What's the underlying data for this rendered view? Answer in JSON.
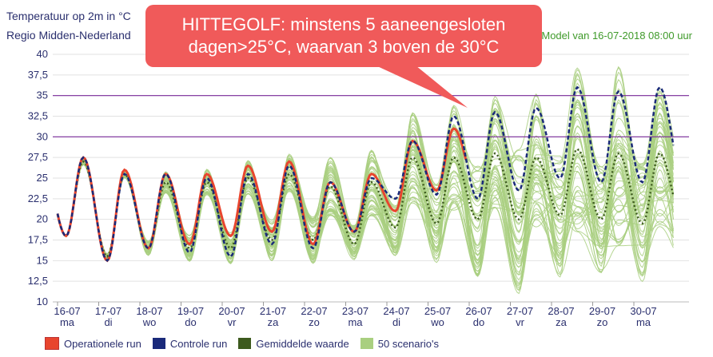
{
  "header": {
    "title": "Temperatuur op 2m in °C",
    "region": "Regio Midden-Nederland",
    "model": "Model van 16-07-2018 08:00 uur"
  },
  "callout": {
    "line1": "HITTEGOLF: minstens 5 aaneengesloten",
    "line2": "dagen>25°C, waarvan 3 boven de 30°C"
  },
  "legend": [
    {
      "label": "Operationele run",
      "color": "#e8452e"
    },
    {
      "label": "Controle run",
      "color": "#1a2a7a"
    },
    {
      "label": "Gemiddelde waarde",
      "color": "#3d5a1e"
    },
    {
      "label": "50 scenario's",
      "color": "#a9cf80"
    }
  ],
  "chart_data": {
    "type": "line",
    "title": "Temperatuur op 2m in °C",
    "ylim": [
      10,
      40
    ],
    "yticks": [
      "10",
      "12,5",
      "15",
      "17,5",
      "20",
      "22,5",
      "25",
      "27,5",
      "30",
      "32,5",
      "35",
      "37,5",
      "40"
    ],
    "xticks": [
      {
        "date": "16-07",
        "day": "ma"
      },
      {
        "date": "17-07",
        "day": "di"
      },
      {
        "date": "18-07",
        "day": "wo"
      },
      {
        "date": "19-07",
        "day": "do"
      },
      {
        "date": "20-07",
        "day": "vr"
      },
      {
        "date": "21-07",
        "day": "za"
      },
      {
        "date": "22-07",
        "day": "zo"
      },
      {
        "date": "23-07",
        "day": "ma"
      },
      {
        "date": "24-07",
        "day": "di"
      },
      {
        "date": "25-07",
        "day": "wo"
      },
      {
        "date": "26-07",
        "day": "do"
      },
      {
        "date": "27-07",
        "day": "vr"
      },
      {
        "date": "28-07",
        "day": "za"
      },
      {
        "date": "29-07",
        "day": "zo"
      },
      {
        "date": "30-07",
        "day": "ma"
      }
    ],
    "thresholds": [
      30,
      35
    ],
    "threshold_color": "#7a2a9a",
    "daily_extremes": {
      "dates": [
        "16-07",
        "17-07",
        "18-07",
        "19-07",
        "20-07",
        "21-07",
        "22-07",
        "23-07",
        "24-07",
        "25-07",
        "26-07",
        "27-07",
        "28-07",
        "29-07",
        "30-07"
      ],
      "operationele_run_max": [
        27.5,
        26,
        25.5,
        25.5,
        26.5,
        27,
        24.5,
        25.5,
        29.5,
        31,
        null,
        null,
        null,
        null,
        null
      ],
      "operationele_run_min": [
        18,
        15,
        16.5,
        17,
        18,
        18.5,
        17,
        18.5,
        21,
        23.5,
        null,
        null,
        null,
        null,
        null
      ],
      "controle_run_max": [
        27.5,
        25.5,
        25.5,
        25,
        25.5,
        26.5,
        24.5,
        25,
        29.5,
        32.5,
        33,
        33.5,
        36,
        35.5,
        36
      ],
      "controle_run_min": [
        18,
        15,
        16.5,
        16,
        15.5,
        17,
        16.5,
        18.5,
        22.5,
        23,
        22.5,
        23.5,
        25,
        24.5,
        24.5
      ],
      "gemiddelde_max": [
        27,
        25.5,
        24.5,
        24.5,
        25,
        25.5,
        24,
        24.5,
        27.5,
        27.5,
        28,
        27.5,
        28.5,
        28,
        28
      ],
      "gemiddelde_min": [
        18,
        15.5,
        16.5,
        16.5,
        16.5,
        17.5,
        17.5,
        17,
        19,
        19.5,
        20,
        20,
        20.5,
        20,
        19.5
      ],
      "scenarios_max": [
        28.5,
        27,
        27.5,
        27.5,
        28.5,
        29,
        28.5,
        29,
        33,
        34,
        35,
        36,
        38.5,
        39.5,
        37
      ],
      "scenarios_min": [
        17.5,
        14.5,
        14.5,
        13.5,
        13.5,
        14,
        14,
        14.5,
        15.5,
        14.5,
        13,
        11,
        13,
        13.5,
        12
      ]
    },
    "series": [
      {
        "name": "Operationele run",
        "color": "#e8452e"
      },
      {
        "name": "Controle run",
        "color": "#1a2a7a"
      },
      {
        "name": "Gemiddelde waarde",
        "color": "#3d5a1e"
      },
      {
        "name": "50 scenario's",
        "color": "#a9cf80"
      }
    ],
    "grid": "horizontal"
  }
}
